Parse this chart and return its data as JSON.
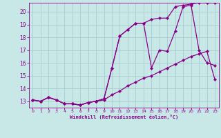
{
  "xlabel": "Windchill (Refroidissement éolien,°C)",
  "bg_color": "#c8e8e8",
  "grid_color": "#a8ccd0",
  "line_color": "#880088",
  "xlim": [
    -0.5,
    23.5
  ],
  "ylim": [
    12.5,
    20.7
  ],
  "xticks": [
    0,
    1,
    2,
    3,
    4,
    5,
    6,
    7,
    8,
    9,
    10,
    11,
    12,
    13,
    14,
    15,
    16,
    17,
    18,
    19,
    20,
    21,
    22,
    23
  ],
  "yticks": [
    13,
    14,
    15,
    16,
    17,
    18,
    19,
    20
  ],
  "series": [
    {
      "x": [
        0,
        1,
        2,
        3,
        4,
        5,
        6,
        7,
        8,
        9,
        10,
        11,
        12,
        13,
        14,
        15,
        16,
        17,
        18,
        19,
        20,
        21,
        22,
        23
      ],
      "y": [
        13.1,
        13.0,
        13.3,
        13.1,
        12.8,
        12.8,
        12.7,
        12.9,
        13.0,
        13.1,
        13.5,
        13.8,
        14.2,
        14.5,
        14.8,
        15.0,
        15.3,
        15.6,
        15.9,
        16.2,
        16.5,
        16.7,
        16.9,
        14.7
      ]
    },
    {
      "x": [
        0,
        1,
        2,
        3,
        4,
        5,
        6,
        7,
        8,
        9,
        10,
        11,
        12,
        13,
        14,
        15,
        16,
        17,
        18,
        19,
        20,
        21,
        22,
        23
      ],
      "y": [
        13.1,
        13.0,
        13.3,
        13.1,
        12.8,
        12.8,
        12.7,
        12.9,
        13.0,
        13.2,
        15.6,
        18.1,
        18.6,
        19.1,
        19.1,
        15.6,
        17.0,
        16.9,
        18.5,
        20.4,
        20.5,
        17.0,
        16.0,
        15.8
      ]
    },
    {
      "x": [
        0,
        1,
        2,
        3,
        4,
        5,
        6,
        7,
        8,
        9,
        10,
        11,
        12,
        13,
        14,
        15,
        16,
        17,
        18,
        19,
        20,
        21,
        22,
        23
      ],
      "y": [
        13.1,
        13.0,
        13.3,
        13.1,
        12.8,
        12.8,
        12.7,
        12.9,
        13.0,
        13.2,
        15.6,
        18.1,
        18.6,
        19.1,
        19.1,
        19.4,
        19.5,
        19.5,
        20.4,
        20.5,
        20.6,
        20.7,
        20.7,
        20.7
      ]
    }
  ]
}
